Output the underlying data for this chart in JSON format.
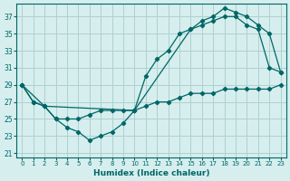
{
  "title": "",
  "xlabel": "Humidex (Indice chaleur)",
  "ylabel": "",
  "bg_color": "#d6eeee",
  "line_color": "#006666",
  "grid_color": "#b0d0d0",
  "xlim": [
    -0.5,
    23.5
  ],
  "ylim": [
    20.5,
    38.5
  ],
  "yticks": [
    21,
    23,
    25,
    27,
    29,
    31,
    33,
    35,
    37
  ],
  "xticks": [
    0,
    1,
    2,
    3,
    4,
    5,
    6,
    7,
    8,
    9,
    10,
    11,
    12,
    13,
    14,
    15,
    16,
    17,
    18,
    19,
    20,
    21,
    22,
    23
  ],
  "series": [
    {
      "x": [
        0,
        1,
        2,
        3,
        4,
        5,
        6,
        7,
        8,
        9,
        10,
        11,
        12,
        13,
        14,
        15,
        16,
        17,
        18,
        19,
        20,
        21,
        22,
        23
      ],
      "y": [
        29,
        27,
        26.5,
        25,
        25,
        25,
        25.5,
        26,
        26,
        26,
        26,
        26.5,
        27,
        27,
        27.5,
        28,
        28,
        28,
        28.5,
        28.5,
        28.5,
        28.5,
        28.5,
        29
      ]
    },
    {
      "x": [
        0,
        1,
        2,
        3,
        4,
        5,
        6,
        7,
        8,
        9,
        10,
        11,
        12,
        13,
        14,
        15,
        16,
        17,
        18,
        19,
        20,
        21,
        22,
        23
      ],
      "y": [
        29,
        27,
        26.5,
        25,
        24,
        23.5,
        22.5,
        23,
        23.5,
        24.5,
        26,
        30,
        32,
        33,
        35,
        35.5,
        36,
        36.5,
        37,
        37,
        36,
        35.5,
        31,
        30.5
      ]
    },
    {
      "x": [
        0,
        2,
        10,
        15,
        16,
        17,
        18,
        19,
        20,
        21,
        22,
        23
      ],
      "y": [
        29,
        26.5,
        26,
        35.5,
        36.5,
        37,
        38,
        37.5,
        37,
        36,
        35,
        30.5
      ]
    }
  ]
}
